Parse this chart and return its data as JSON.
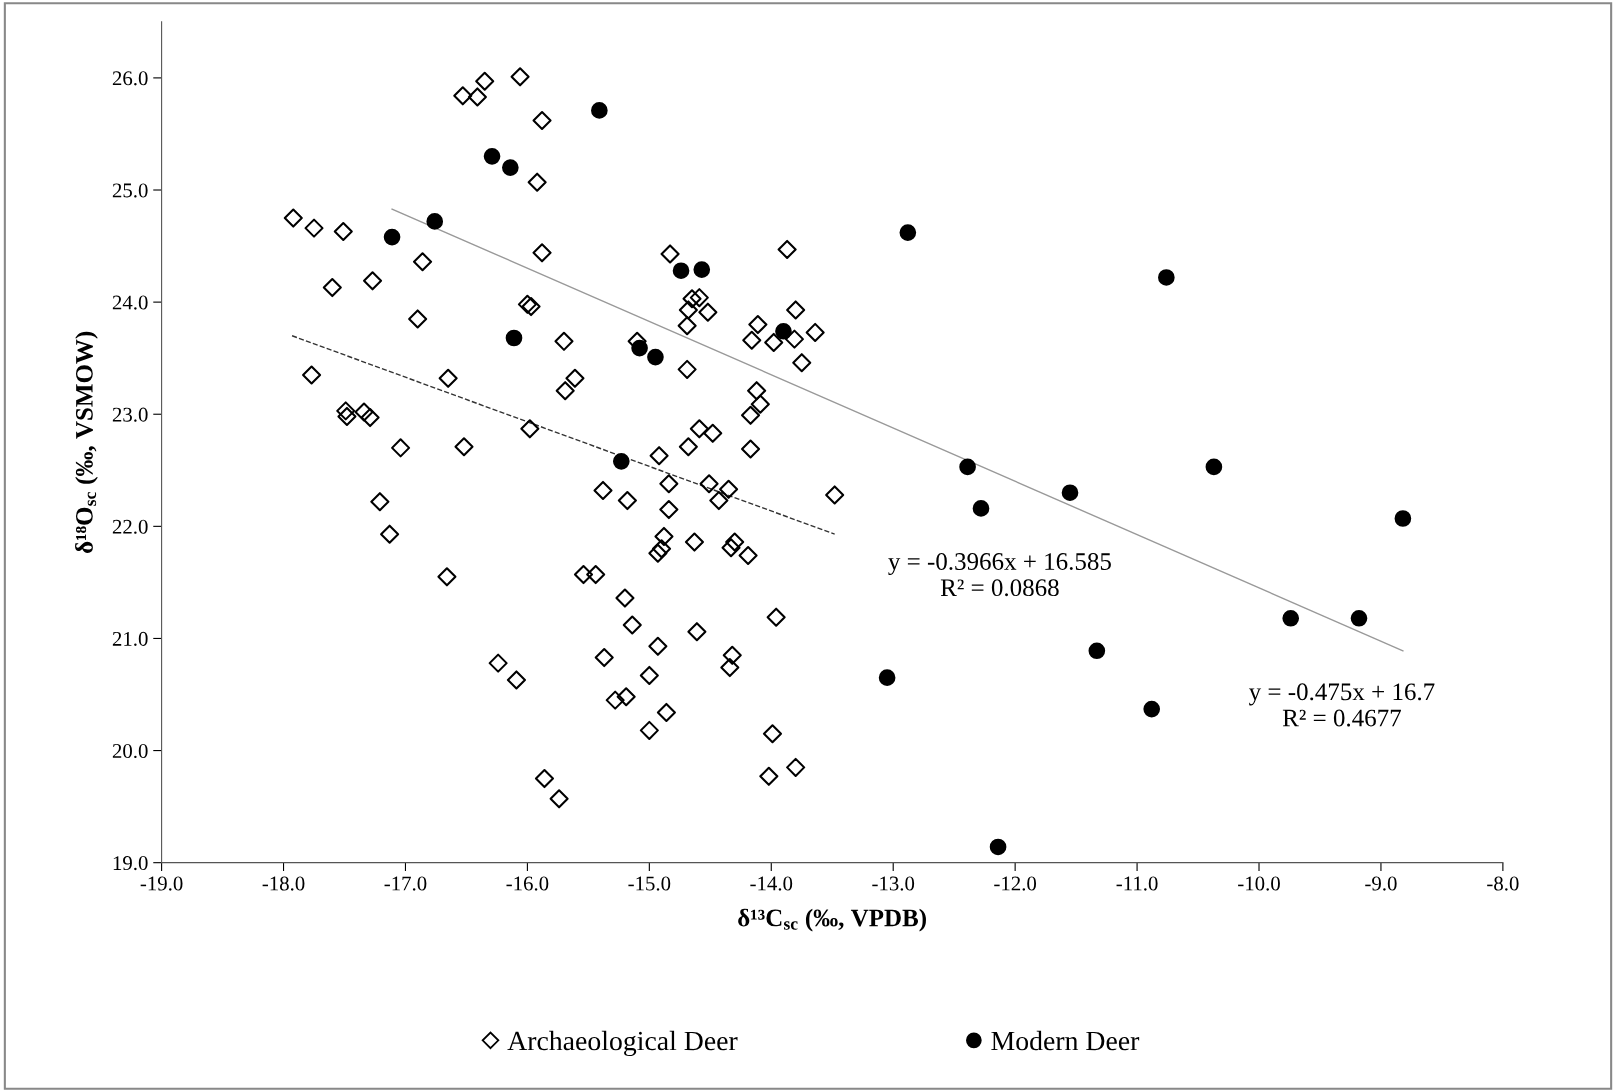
{
  "chart_data": {
    "type": "scatter",
    "xlabel": "δ¹³C$_{sc}$ (‰, VPDB)",
    "ylabel": "δ¹⁸O$_{sc}$ (‰, VSMOW)",
    "xlim": [
      -19,
      -8
    ],
    "ylim": [
      19,
      26.5
    ],
    "xticks": [
      {
        "value": -19,
        "label": "-19.0"
      },
      {
        "value": -18,
        "label": "-18.0"
      },
      {
        "value": -17,
        "label": "-17.0"
      },
      {
        "value": -16,
        "label": "-16.0"
      },
      {
        "value": -15,
        "label": "-15.0"
      },
      {
        "value": -14,
        "label": "-14.0"
      },
      {
        "value": -13,
        "label": "-13.0"
      },
      {
        "value": -12,
        "label": "-12.0"
      },
      {
        "value": -11,
        "label": "-11.0"
      },
      {
        "value": -10,
        "label": "-10.0"
      },
      {
        "value": -9,
        "label": "-9.0"
      },
      {
        "value": -8,
        "label": "-8.0"
      }
    ],
    "yticks": [
      {
        "value": 19,
        "label": "19.0"
      },
      {
        "value": 20,
        "label": "20.0"
      },
      {
        "value": 21,
        "label": "21.0"
      },
      {
        "value": 22,
        "label": "22.0"
      },
      {
        "value": 23,
        "label": "23.0"
      },
      {
        "value": 24,
        "label": "24.0"
      },
      {
        "value": 25,
        "label": "25.0"
      },
      {
        "value": 26,
        "label": "26.0"
      }
    ],
    "grid": false,
    "legend": "bottom",
    "series": [
      {
        "name": "Archaeological Deer",
        "color": "#000000",
        "marker": "diamond",
        "x": [
          -17.92,
          -17.75,
          -17.51,
          -17.6,
          -17.27,
          -16.86,
          -16.9,
          -17.77,
          -17.49,
          -17.48,
          -17.34,
          -17.29,
          -17.04,
          -17.21,
          -17.13,
          -16.65,
          -16.52,
          -16.66,
          -16.53,
          -16.41,
          -16.35,
          -16.06,
          -15.88,
          -15.92,
          -15.88,
          -16.0,
          -15.97,
          -15.98,
          -15.7,
          -15.61,
          -15.69,
          -15.38,
          -15.18,
          -15.54,
          -15.44,
          -15.2,
          -15.14,
          -15.37,
          -16.24,
          -16.09,
          -15.28,
          -15.19,
          -15.86,
          -15.74,
          -15.1,
          -14.92,
          -14.84,
          -14.84,
          -14.88,
          -14.9,
          -14.93,
          -14.93,
          -15.0,
          -14.86,
          -15.0,
          -14.83,
          -14.65,
          -14.59,
          -14.68,
          -14.52,
          -14.69,
          -14.69,
          -14.68,
          -14.59,
          -14.48,
          -14.51,
          -14.35,
          -14.43,
          -14.63,
          -14.3,
          -14.33,
          -14.19,
          -14.61,
          -14.32,
          -14.34,
          -13.99,
          -14.02,
          -13.8,
          -13.96,
          -14.17,
          -14.17,
          -14.09,
          -14.12,
          -14.11,
          -14.16,
          -13.98,
          -13.81,
          -13.8,
          -13.87,
          -13.64,
          -13.75,
          -13.48
        ],
        "values": [
          24.75,
          24.66,
          24.63,
          24.13,
          24.19,
          24.36,
          23.85,
          23.35,
          23.03,
          22.98,
          23.02,
          22.97,
          22.7,
          22.22,
          21.93,
          23.32,
          22.71,
          21.55,
          25.84,
          25.83,
          25.97,
          26.01,
          25.62,
          25.07,
          24.44,
          23.98,
          23.96,
          22.87,
          23.65,
          23.32,
          23.21,
          22.32,
          22.23,
          21.57,
          21.57,
          21.36,
          21.12,
          20.83,
          20.78,
          20.63,
          20.45,
          20.48,
          19.75,
          19.57,
          23.65,
          22.63,
          22.38,
          22.15,
          21.91,
          21.8,
          21.76,
          20.93,
          20.67,
          20.34,
          20.18,
          24.43,
          24.03,
          24.04,
          23.93,
          23.91,
          23.79,
          23.4,
          22.71,
          22.87,
          22.83,
          22.38,
          22.33,
          22.23,
          21.86,
          21.86,
          21.81,
          21.74,
          21.06,
          20.85,
          20.74,
          20.15,
          19.77,
          19.85,
          21.19,
          22.69,
          22.99,
          23.09,
          23.21,
          23.8,
          23.66,
          23.64,
          23.67,
          23.93,
          24.47,
          23.73,
          23.46,
          22.28
        ]
      },
      {
        "name": "Modern Deer",
        "color": "#000000",
        "marker": "circle",
        "x": [
          -15.41,
          -16.29,
          -16.14,
          -16.76,
          -17.11,
          -16.11,
          -14.74,
          -14.57,
          -15.08,
          -14.95,
          -13.9,
          -15.23,
          -12.88,
          -12.39,
          -12.28,
          -11.55,
          -10.76,
          -10.37,
          -8.82,
          -9.74,
          -9.18,
          -11.33,
          -10.88,
          -13.05,
          -12.14
        ],
        "values": [
          25.71,
          25.3,
          25.2,
          24.72,
          24.58,
          23.68,
          24.28,
          24.29,
          23.59,
          23.51,
          23.74,
          22.58,
          24.62,
          22.53,
          22.16,
          22.3,
          24.22,
          22.53,
          22.07,
          21.18,
          21.18,
          20.89,
          20.37,
          20.65,
          19.14
        ]
      },
      {
        "type": "line",
        "color": "#333333",
        "line_style": "dashed",
        "x": [
          -17.93,
          -13.48
        ],
        "values": [
          23.7,
          21.93
        ]
      },
      {
        "type": "line",
        "color": "#999999",
        "line_style": "solid",
        "x": [
          -17.11,
          -8.82
        ],
        "values": [
          24.83,
          20.89
        ]
      }
    ],
    "annotations": [
      "y = -0.3966x + 16.585\nR² = 0.0868",
      "y = -0.475x + 16.7\nR² = 0.4677"
    ]
  }
}
